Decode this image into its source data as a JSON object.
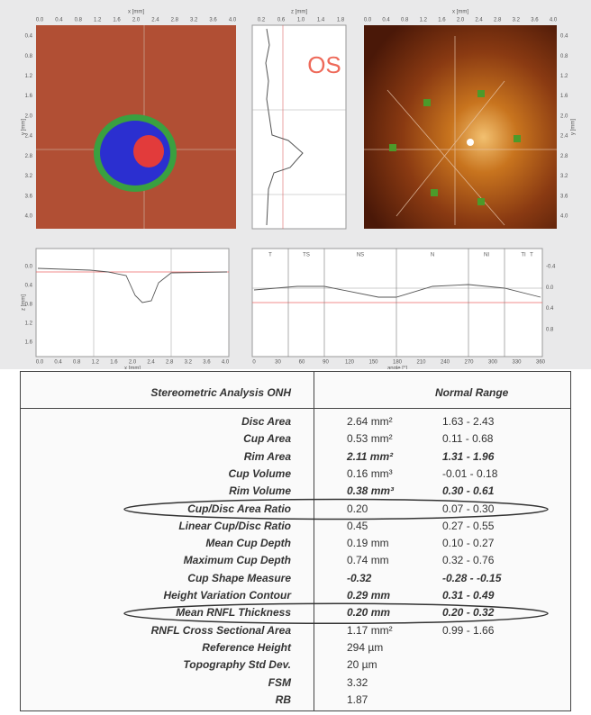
{
  "images": {
    "x_label": "x [mm]",
    "y_label": "y [mm]",
    "z_label": "z [mm]",
    "eye": "OS",
    "x_ticks": [
      "0.0",
      "0.4",
      "0.8",
      "1.2",
      "1.6",
      "2.0",
      "2.4",
      "2.8",
      "3.2",
      "3.6",
      "4.0"
    ],
    "y_ticks": [
      "0.4",
      "0.8",
      "1.2",
      "1.6",
      "2.0",
      "2.4",
      "2.8",
      "3.2",
      "3.6",
      "4.0"
    ],
    "z_ticks": [
      "0.2",
      "0.6",
      "1.0",
      "1.4",
      "1.8"
    ]
  },
  "profile": {
    "x_label": "x [mm]",
    "y_label": "z [mm]",
    "x_ticks": [
      "0.0",
      "0.4",
      "0.8",
      "1.2",
      "1.6",
      "2.0",
      "2.4",
      "2.8",
      "3.2",
      "3.6",
      "4.0"
    ],
    "y_ticks": [
      "0.0",
      "0.4",
      "0.8",
      "1.2",
      "1.6"
    ]
  },
  "contour": {
    "x_label": "angle [°]",
    "x_ticks": [
      "0",
      "30",
      "60",
      "90",
      "120",
      "150",
      "180",
      "210",
      "240",
      "270",
      "300",
      "330",
      "360"
    ],
    "y_ticks": [
      "-0.4",
      "0.0",
      "0.4",
      "0.8"
    ],
    "sectors": [
      "T",
      "TS",
      "NS",
      "N",
      "NI",
      "TI",
      "T"
    ]
  },
  "table": {
    "header": "Stereometric Analysis ONH",
    "range_header": "Normal Range",
    "rows": [
      {
        "label": "Disc Area",
        "value": "2.64 mm²",
        "range": "1.63 - 2.43",
        "bold": false,
        "circled": false
      },
      {
        "label": "Cup Area",
        "value": "0.53 mm²",
        "range": "0.11 - 0.68",
        "bold": false,
        "circled": false
      },
      {
        "label": "Rim Area",
        "value": "2.11 mm²",
        "range": "1.31 - 1.96",
        "bold": true,
        "circled": false
      },
      {
        "label": "Cup Volume",
        "value": "0.16 mm³",
        "range": "-0.01 - 0.18",
        "bold": false,
        "circled": false
      },
      {
        "label": "Rim Volume",
        "value": "0.38 mm³",
        "range": "0.30 - 0.61",
        "bold": true,
        "circled": false
      },
      {
        "label": "Cup/Disc Area Ratio",
        "value": "0.20",
        "range": "0.07 - 0.30",
        "bold": false,
        "circled": true
      },
      {
        "label": "Linear Cup/Disc Ratio",
        "value": "0.45",
        "range": "0.27 - 0.55",
        "bold": false,
        "circled": false
      },
      {
        "label": "Mean Cup Depth",
        "value": "0.19 mm",
        "range": "0.10 - 0.27",
        "bold": false,
        "circled": false
      },
      {
        "label": "Maximum Cup Depth",
        "value": "0.74 mm",
        "range": "0.32 - 0.76",
        "bold": false,
        "circled": false
      },
      {
        "label": "Cup Shape Measure",
        "value": "-0.32",
        "range": "-0.28 - -0.15",
        "bold": true,
        "circled": false
      },
      {
        "label": "Height Variation Contour",
        "value": "0.29 mm",
        "range": "0.31 - 0.49",
        "bold": true,
        "circled": false
      },
      {
        "label": "Mean RNFL Thickness",
        "value": "0.20 mm",
        "range": "0.20 - 0.32",
        "bold": true,
        "circled": true
      },
      {
        "label": "RNFL Cross Sectional Area",
        "value": "1.17 mm²",
        "range": "0.99 - 1.66",
        "bold": false,
        "circled": false
      },
      {
        "label": "Reference Height",
        "value": "294 µm",
        "range": "",
        "bold": false,
        "circled": false
      },
      {
        "label": "Topography Std Dev.",
        "value": "20 µm",
        "range": "",
        "bold": false,
        "circled": false
      },
      {
        "label": "FSM",
        "value": "3.32",
        "range": "",
        "bold": false,
        "circled": false
      },
      {
        "label": "RB",
        "value": "1.87",
        "range": "",
        "bold": false,
        "circled": false
      }
    ]
  }
}
